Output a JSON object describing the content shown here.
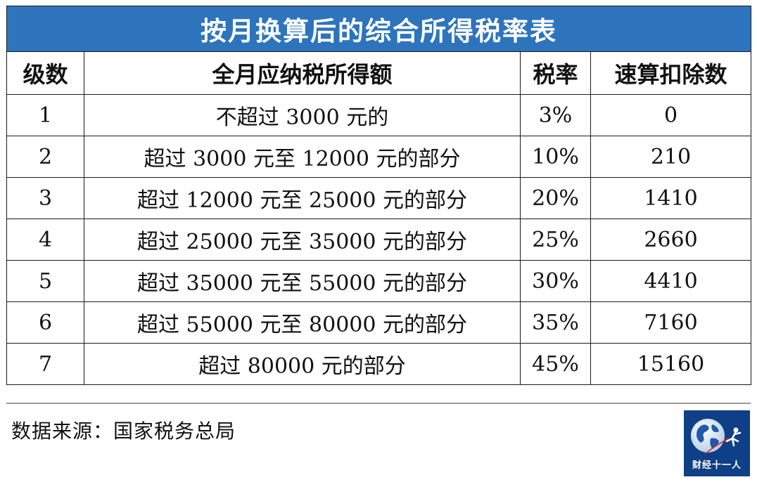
{
  "table": {
    "title": "按月换算后的综合所得税率表",
    "headers": {
      "level": "级数",
      "income": "全月应纳税所得额",
      "rate": "税率",
      "deduction": "速算扣除数"
    },
    "rows": [
      {
        "level": "1",
        "income": "不超过 3000 元的",
        "rate": "3%",
        "deduction": "0"
      },
      {
        "level": "2",
        "income": "超过 3000 元至 12000 元的部分",
        "rate": "10%",
        "deduction": "210"
      },
      {
        "level": "3",
        "income": "超过 12000 元至 25000 元的部分",
        "rate": "20%",
        "deduction": "1410"
      },
      {
        "level": "4",
        "income": "超过 25000 元至 35000 元的部分",
        "rate": "25%",
        "deduction": "2660"
      },
      {
        "level": "5",
        "income": "超过 35000 元至 55000 元的部分",
        "rate": "30%",
        "deduction": "4410"
      },
      {
        "level": "6",
        "income": "超过 55000 元至 80000 元的部分",
        "rate": "35%",
        "deduction": "7160"
      },
      {
        "level": "7",
        "income": "超过 80000 元的部分",
        "rate": "45%",
        "deduction": "15160"
      }
    ]
  },
  "footer": {
    "source": "数据来源：国家税务总局"
  },
  "logo": {
    "text": "财经十一人",
    "icon": "globe-runner-icon"
  },
  "colors": {
    "title_bg": "#2d74bd",
    "logo_bg": "#0f3f86"
  }
}
